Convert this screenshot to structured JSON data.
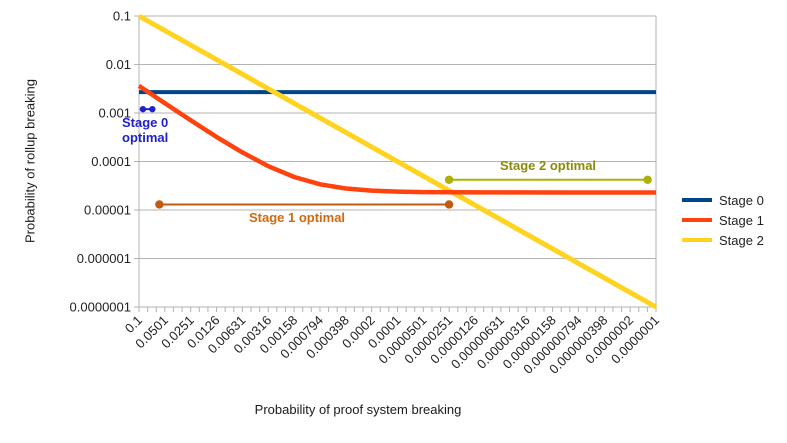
{
  "chart_data": {
    "type": "line",
    "title": "",
    "xlabel": "Probability of proof system breaking",
    "ylabel": "Probability of rollup breaking",
    "x_scale": "log",
    "y_scale": "log",
    "xlim": [
      0.1,
      1e-07
    ],
    "ylim": [
      0.1,
      1e-07
    ],
    "grid": "horizontal-decade-gridlines",
    "legend_position": "right-middle",
    "x_tick_labels": [
      "0.1",
      "0.0501",
      "0.0251",
      "0.0126",
      "0.00631",
      "0.00316",
      "0.00158",
      "0.000794",
      "0.000398",
      "0.0002",
      "0.0001",
      "0.0000501",
      "0.0000251",
      "0.0000126",
      "0.00000631",
      "0.00000316",
      "0.00000158",
      "0.000000794",
      "0.000000398",
      "0.0000002",
      "0.0000001"
    ],
    "y_tick_labels": [
      "0.1",
      "0.01",
      "0.001",
      "0.0001",
      "0.00001",
      "0.000001",
      "0.0000001"
    ],
    "series": [
      {
        "name": "Stage 0",
        "color": "#004586",
        "points": [
          [
            0.1,
            0.0027
          ],
          [
            1e-07,
            0.0027
          ]
        ]
      },
      {
        "name": "Stage 1",
        "color": "#FF420E",
        "points": [
          [
            0.1,
            0.00362
          ],
          [
            0.0501,
            0.00159
          ],
          [
            0.0251,
            0.000708
          ],
          [
            0.0126,
            0.000322
          ],
          [
            0.00631,
            0.000154
          ],
          [
            0.00316,
            8e-05
          ],
          [
            0.00158,
            4.79e-05
          ],
          [
            0.000794,
            3.39e-05
          ],
          [
            0.000398,
            2.77e-05
          ],
          [
            0.0002,
            2.51e-05
          ],
          [
            0.0001,
            2.39e-05
          ],
          [
            5.01e-05,
            2.34e-05
          ],
          [
            2.51e-05,
            2.32e-05
          ],
          [
            1e-05,
            2.31e-05
          ],
          [
            1e-06,
            2.3e-05
          ],
          [
            1e-07,
            2.3e-05
          ]
        ]
      },
      {
        "name": "Stage 2",
        "color": "#FFD320",
        "points": [
          [
            0.1,
            0.1
          ],
          [
            1e-07,
            1e-07
          ]
        ]
      }
    ],
    "annotations": [
      {
        "label": "Stage 0 optimal",
        "text_color": "#2020CF",
        "line_color": "#2020CF",
        "y": 0.0012,
        "x_start": 0.09,
        "x_end": 0.07,
        "dot_radius": 3.2,
        "line_width": 2
      },
      {
        "label": "Stage 1 optimal",
        "text_color": "#D2690B",
        "line_color": "#C05C10",
        "y": 1.3e-05,
        "x_start": 0.058,
        "x_end": 2.52e-05,
        "dot_radius": 4.2,
        "line_width": 2
      },
      {
        "label": "Stage 2 optimal",
        "text_color": "#8B8B06",
        "line_color": "#AFAF06",
        "y": 4.2e-05,
        "x_start": 2.52e-05,
        "x_end": 1.25e-07,
        "dot_radius": 4.2,
        "line_width": 2
      }
    ],
    "legend": [
      {
        "label": "Stage 0",
        "color": "#004586"
      },
      {
        "label": "Stage 1",
        "color": "#FF420E"
      },
      {
        "label": "Stage 2",
        "color": "#FFD320"
      }
    ]
  },
  "colors": {
    "gridline": "#B3B3B3",
    "plot_border": "#B3B3B3",
    "tick_mark": "#B3B3B3",
    "tick_label": "#222222",
    "axis_title": "#1A1A1A"
  }
}
